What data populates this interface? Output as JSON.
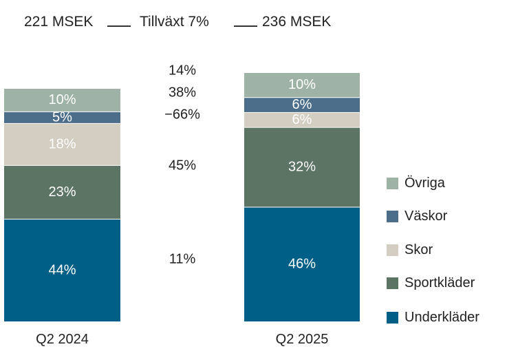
{
  "header": {
    "left_total": "221 MSEK",
    "growth": "Tillväxt 7%",
    "right_total": "236 MSEK"
  },
  "colors": {
    "underklader": "#005f87",
    "sportklader": "#5b7464",
    "skor": "#d3cdc2",
    "vaskor": "#4c6e8a",
    "ovriga": "#9fb2a6"
  },
  "chart_data": {
    "type": "bar",
    "stacked": true,
    "title": "",
    "categories": [
      "Q2 2024",
      "Q2 2025"
    ],
    "totals": [
      "221 MSEK",
      "236 MSEK"
    ],
    "series": [
      {
        "name": "Underkläder",
        "key": "underklader",
        "values": [
          44,
          46
        ],
        "labels": [
          "44%",
          "46%"
        ]
      },
      {
        "name": "Sportkläder",
        "key": "sportklader",
        "values": [
          23,
          32
        ],
        "labels": [
          "23%",
          "32%"
        ]
      },
      {
        "name": "Skor",
        "key": "skor",
        "values": [
          18,
          6
        ],
        "labels": [
          "18%",
          "6%"
        ]
      },
      {
        "name": "Väskor",
        "key": "vaskor",
        "values": [
          5,
          6
        ],
        "labels": [
          "5%",
          "6%"
        ]
      },
      {
        "name": "Övriga",
        "key": "ovriga",
        "values": [
          10,
          10
        ],
        "labels": [
          "10%",
          "10%"
        ]
      }
    ],
    "growth_rates": [
      {
        "series": "Övriga",
        "label": "14%"
      },
      {
        "series": "Väskor",
        "label": "38%"
      },
      {
        "series": "Skor",
        "label": "−66%"
      },
      {
        "series": "Sportkläder",
        "label": "45%"
      },
      {
        "series": "Underkläder",
        "label": "11%"
      }
    ],
    "legend_order": [
      "Övriga",
      "Väskor",
      "Skor",
      "Sportkläder",
      "Underkläder"
    ],
    "legend_position": "right"
  }
}
